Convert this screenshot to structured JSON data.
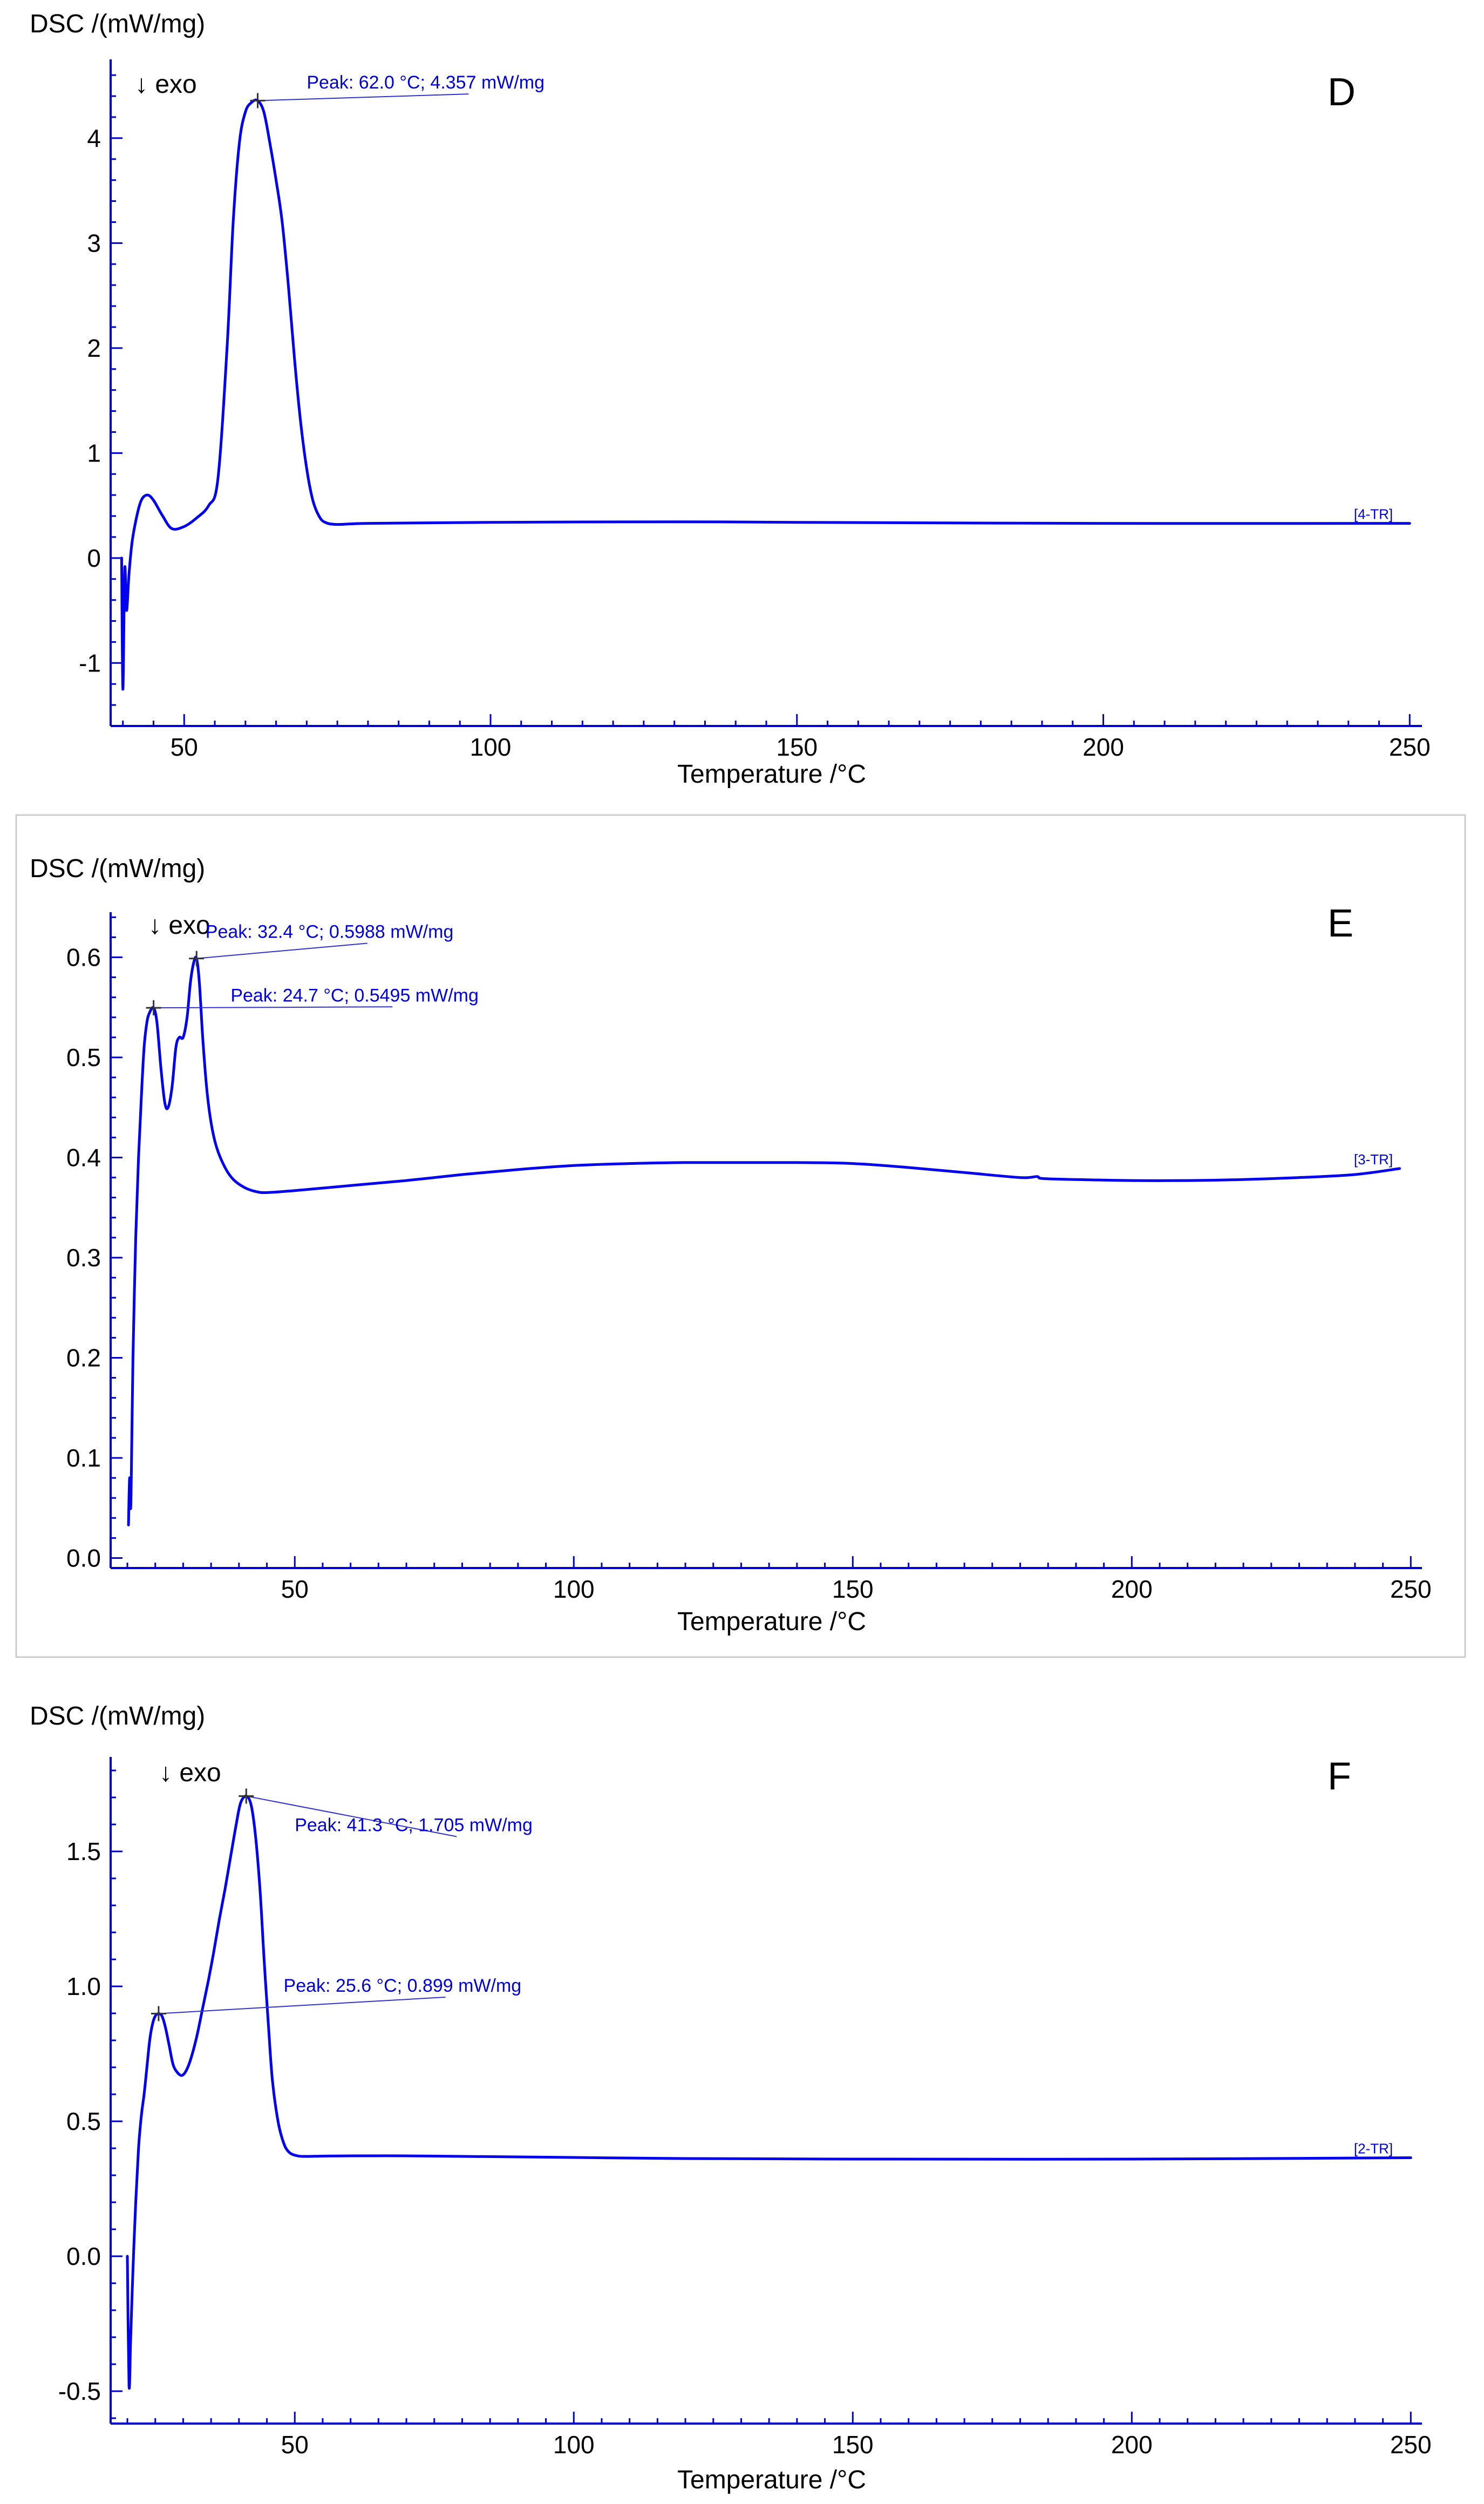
{
  "chart_data": [
    {
      "type": "line",
      "panel": "D",
      "ylabel": "DSC /(mW/mg)",
      "xlabel": "Temperature /°C",
      "exo_label": "↓ exo",
      "curve_label": "[4-TR]",
      "xlim": [
        38,
        252
      ],
      "ylim": [
        -1.6,
        4.75
      ],
      "x_ticks": [
        50,
        100,
        150,
        200,
        250
      ],
      "y_ticks": [
        -1,
        0,
        1,
        2,
        3,
        4
      ],
      "y_tick_labels": [
        "-1",
        "0",
        "1",
        "2",
        "3",
        "4"
      ],
      "peaks": [
        {
          "x": 62.0,
          "y": 4.357,
          "label": "Peak: 62.0 °C; 4.357 mW/mg",
          "label_x": 70,
          "label_y": 4.42
        }
      ],
      "series": [
        {
          "name": "4-TR",
          "x": [
            39.8,
            40.0,
            40.3,
            40.6,
            41.0,
            41.5,
            42.2,
            43.0,
            44.0,
            45.0,
            46.5,
            48.0,
            50.0,
            52.0,
            54.0,
            55.5,
            57.0,
            58.0,
            59.0,
            60.0,
            61.0,
            62.0,
            63.0,
            64.0,
            65.0,
            66.0,
            67.0,
            68.0,
            69.0,
            70.0,
            71.0,
            72.0,
            73.0,
            75.0,
            80.0,
            100.0,
            130.0,
            150.0,
            200.0,
            250.0
          ],
          "y": [
            0.0,
            -1.25,
            -0.1,
            -0.5,
            -0.15,
            0.15,
            0.38,
            0.55,
            0.6,
            0.55,
            0.4,
            0.28,
            0.3,
            0.38,
            0.5,
            0.75,
            2.0,
            3.2,
            3.95,
            4.25,
            4.34,
            4.357,
            4.25,
            3.95,
            3.6,
            3.2,
            2.6,
            1.9,
            1.3,
            0.85,
            0.55,
            0.4,
            0.34,
            0.32,
            0.33,
            0.34,
            0.345,
            0.34,
            0.33,
            0.33
          ]
        }
      ]
    },
    {
      "type": "line",
      "panel": "E",
      "ylabel": "DSC /(mW/mg)",
      "xlabel": "Temperature /°C",
      "exo_label": "↓ exo",
      "curve_label": "[3-TR]",
      "xlim": [
        17,
        252
      ],
      "ylim": [
        -0.01,
        0.645
      ],
      "x_ticks": [
        50,
        100,
        150,
        200,
        250
      ],
      "y_ticks": [
        0.0,
        0.1,
        0.2,
        0.3,
        0.4,
        0.5,
        0.6
      ],
      "y_tick_labels": [
        "0.0",
        "0.1",
        "0.2",
        "0.3",
        "0.4",
        "0.5",
        "0.6"
      ],
      "peaks": [
        {
          "x": 32.4,
          "y": 0.5988,
          "label": "Peak: 32.4 °C; 0.5988 mW/mg",
          "label_x": 34,
          "label_y": 0.614
        },
        {
          "x": 24.7,
          "y": 0.5495,
          "label": "Peak: 24.7 °C; 0.5495 mW/mg",
          "label_x": 38.5,
          "label_y": 0.5505
        }
      ],
      "series": [
        {
          "name": "3-TR",
          "x": [
            20.2,
            20.4,
            20.6,
            20.8,
            21.0,
            21.5,
            22.0,
            22.5,
            23.0,
            23.5,
            24.0,
            24.7,
            25.3,
            26.0,
            26.7,
            27.3,
            28.0,
            28.7,
            29.3,
            30.0,
            30.7,
            31.3,
            31.9,
            32.4,
            32.9,
            33.5,
            34.2,
            35.0,
            36.0,
            37.5,
            39.0,
            41.0,
            43.0,
            45.0,
            50.0,
            60.0,
            70.0,
            80.0,
            90.0,
            100.0,
            110.0,
            120.0,
            130.0,
            140.0,
            150.0,
            160.0,
            170.0,
            180.0,
            183.0,
            184.0,
            190.0,
            200.0,
            210.0,
            220.0,
            230.0,
            240.0,
            248.0
          ],
          "y": [
            0.033,
            0.08,
            0.05,
            0.12,
            0.2,
            0.32,
            0.4,
            0.46,
            0.51,
            0.535,
            0.545,
            0.5495,
            0.535,
            0.49,
            0.455,
            0.45,
            0.47,
            0.51,
            0.52,
            0.52,
            0.54,
            0.575,
            0.595,
            0.5988,
            0.575,
            0.52,
            0.47,
            0.435,
            0.41,
            0.39,
            0.378,
            0.37,
            0.366,
            0.365,
            0.367,
            0.372,
            0.377,
            0.383,
            0.388,
            0.392,
            0.394,
            0.395,
            0.395,
            0.395,
            0.394,
            0.39,
            0.385,
            0.38,
            0.381,
            0.379,
            0.378,
            0.377,
            0.377,
            0.378,
            0.38,
            0.383,
            0.389
          ]
        }
      ]
    },
    {
      "type": "line",
      "panel": "F",
      "ylabel": "DSC /(mW/mg)",
      "xlabel": "Temperature /°C",
      "exo_label": "↓ exo",
      "curve_label": "[2-TR]",
      "xlim": [
        17,
        252
      ],
      "ylim": [
        -0.62,
        1.85
      ],
      "x_ticks": [
        50,
        100,
        150,
        200,
        250
      ],
      "y_ticks": [
        -0.5,
        0.0,
        0.5,
        1.0,
        1.5
      ],
      "y_tick_labels": [
        "-0.5",
        "0.0",
        "0.5",
        "1.0",
        "1.5"
      ],
      "peaks": [
        {
          "x": 41.3,
          "y": 1.705,
          "label": "Peak: 41.3 °C; 1.705 mW/mg",
          "label_x": 50,
          "label_y": 1.555
        },
        {
          "x": 25.6,
          "y": 0.899,
          "label": "Peak: 25.6 °C; 0.899 mW/mg",
          "label_x": 48,
          "label_y": 0.96
        }
      ],
      "series": [
        {
          "name": "2-TR",
          "x": [
            20.0,
            20.3,
            20.6,
            21.0,
            21.5,
            22.0,
            22.5,
            23.0,
            23.5,
            24.0,
            24.5,
            25.0,
            25.6,
            26.2,
            26.8,
            27.5,
            28.2,
            29.0,
            29.8,
            30.6,
            31.5,
            32.5,
            33.5,
            34.5,
            35.5,
            36.5,
            37.5,
            38.5,
            39.5,
            40.3,
            41.3,
            42.2,
            43.0,
            43.8,
            44.5,
            45.3,
            46.0,
            47.0,
            48.0,
            49.0,
            50.5,
            52.0,
            55.0,
            60.0,
            70.0,
            80.0,
            100.0,
            120.0,
            150.0,
            200.0,
            250.0
          ],
          "y": [
            0.0,
            -0.48,
            -0.3,
            -0.05,
            0.2,
            0.4,
            0.52,
            0.6,
            0.7,
            0.8,
            0.86,
            0.89,
            0.899,
            0.89,
            0.85,
            0.78,
            0.71,
            0.68,
            0.67,
            0.69,
            0.74,
            0.82,
            0.92,
            1.02,
            1.13,
            1.25,
            1.36,
            1.48,
            1.6,
            1.68,
            1.705,
            1.67,
            1.55,
            1.35,
            1.1,
            0.85,
            0.65,
            0.5,
            0.42,
            0.385,
            0.372,
            0.37,
            0.371,
            0.372,
            0.372,
            0.37,
            0.366,
            0.362,
            0.36,
            0.36,
            0.365
          ]
        }
      ]
    }
  ]
}
